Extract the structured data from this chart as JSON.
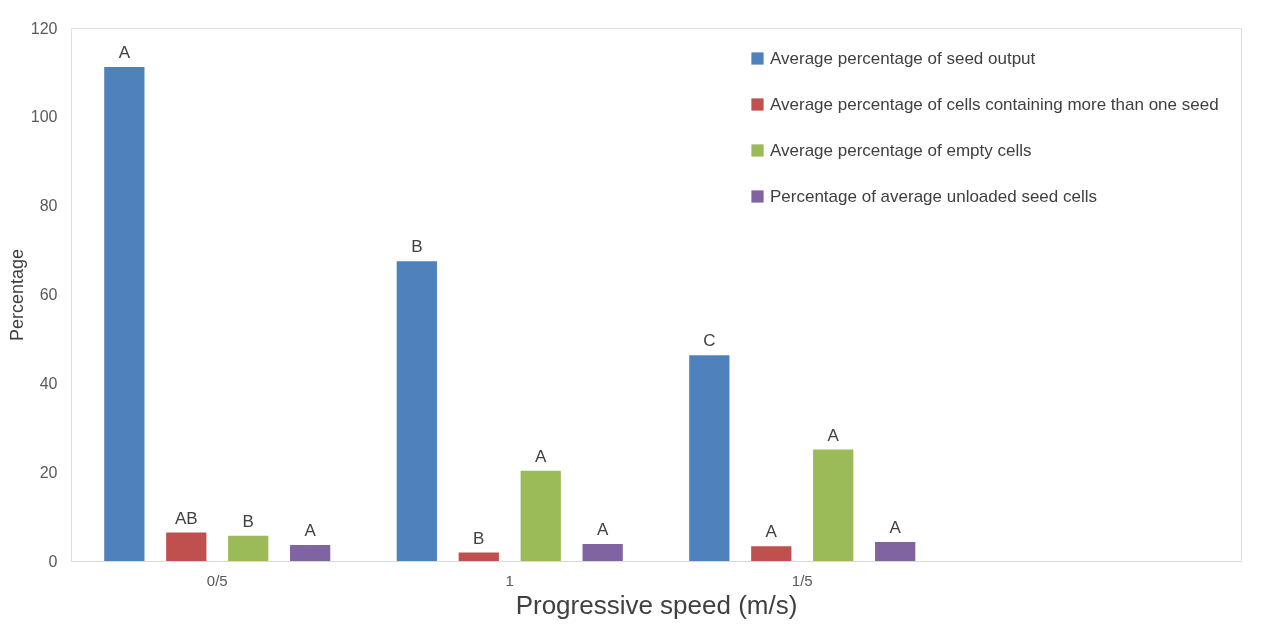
{
  "chart_data": {
    "type": "bar",
    "xlabel": "Progressive speed (m/s)",
    "ylabel": "Percentage",
    "categories": [
      "0/5",
      "1",
      "1/5",
      null
    ],
    "ylim": [
      0,
      120
    ],
    "yticks": [
      0,
      20,
      40,
      60,
      80,
      100,
      120
    ],
    "grid": false,
    "legend": "top right",
    "series": [
      {
        "name": "Average percentage of seed output",
        "color": "#4f81bd",
        "values": [
          111.2,
          67.5,
          46.3,
          null
        ],
        "value_labels": [
          "A",
          "B",
          "C",
          null
        ]
      },
      {
        "name": "Average percentage of cells containing more than one seed",
        "color": "#c0504d",
        "values": [
          6.4,
          1.9,
          3.3,
          null
        ],
        "value_labels": [
          "AB",
          "B",
          "A",
          null
        ]
      },
      {
        "name": "Average percentage of empty cells",
        "color": "#9bbb59",
        "values": [
          5.7,
          20.3,
          25.1,
          null
        ],
        "value_labels": [
          "B",
          "A",
          "A",
          null
        ]
      },
      {
        "name": "Percentage of average unloaded seed cells",
        "color": "#8064a2",
        "values": [
          3.6,
          3.8,
          4.3,
          null
        ],
        "value_labels": [
          "A",
          "A",
          "A",
          null
        ]
      }
    ]
  }
}
